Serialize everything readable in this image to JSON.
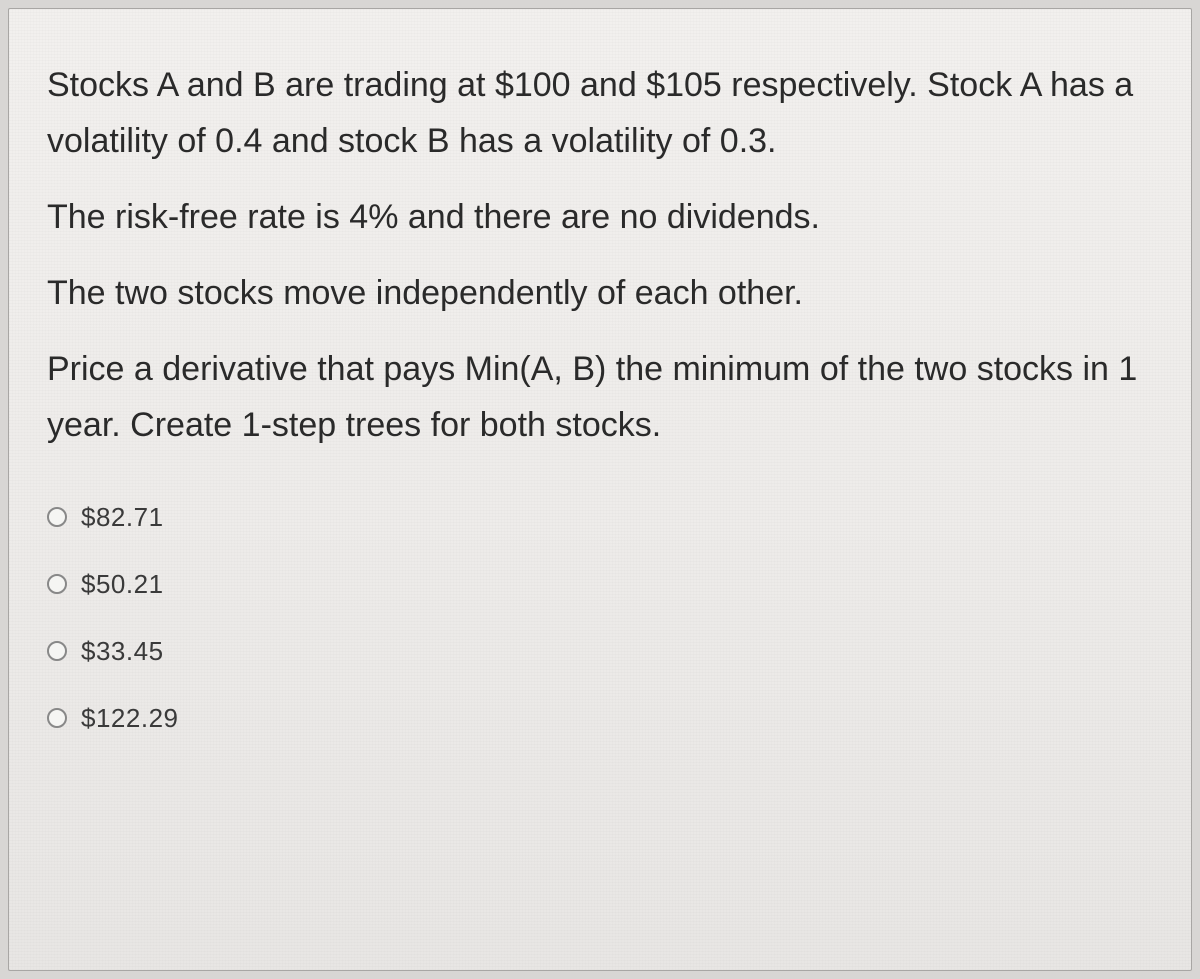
{
  "question": {
    "paragraphs": [
      "Stocks A and B are trading at $100 and $105 respectively. Stock A has a volatility of 0.4 and stock B has a volatility of 0.3.",
      "The risk-free rate is 4% and there are no dividends.",
      "The two stocks move independently of each other.",
      "Price a derivative that pays Min(A, B) the minimum of the two stocks in 1 year. Create 1-step trees for both stocks."
    ]
  },
  "options": [
    {
      "label": "$82.71"
    },
    {
      "label": "$50.21"
    },
    {
      "label": "$33.45"
    },
    {
      "label": "$122.29"
    }
  ],
  "colors": {
    "card_bg_top": "#f2f0ee",
    "card_bg_bottom": "#e8e6e4",
    "card_border": "#a8a6a4",
    "text": "#2a2a2a",
    "option_text": "#3a3a3a",
    "radio_border": "#888888"
  },
  "typography": {
    "question_fontsize": 34,
    "option_fontsize": 26,
    "line_height": 1.65
  }
}
